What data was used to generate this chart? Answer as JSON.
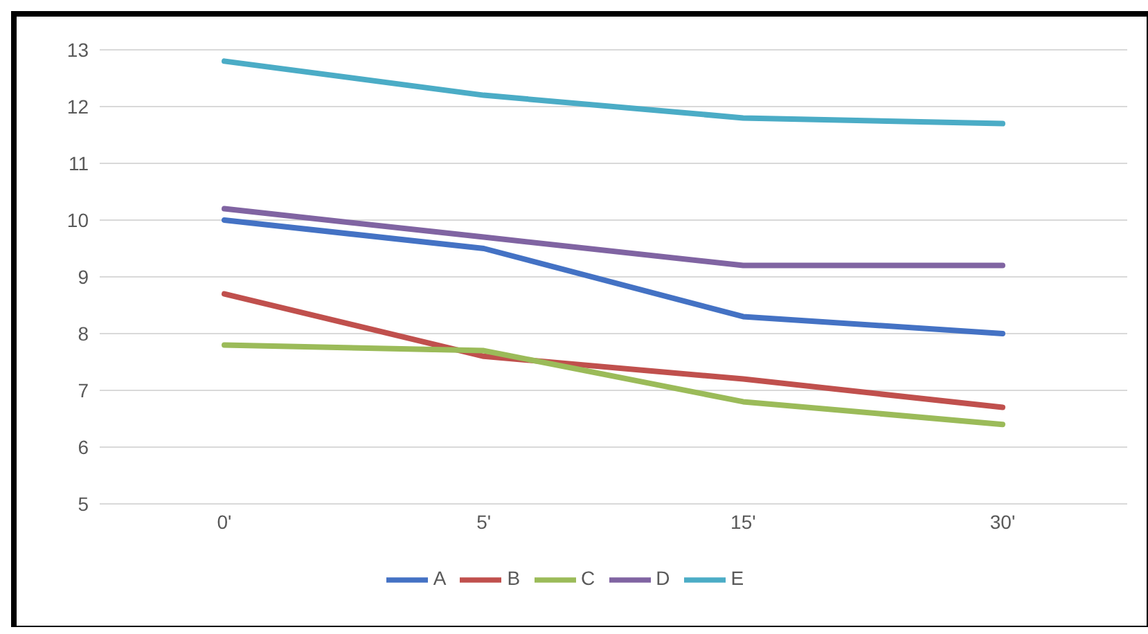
{
  "chart_data": {
    "type": "line",
    "categories": [
      "0'",
      "5'",
      "15'",
      "30'"
    ],
    "series": [
      {
        "name": "A",
        "color": "#4472c4",
        "values": [
          10.0,
          9.5,
          8.3,
          8.0
        ]
      },
      {
        "name": "B",
        "color": "#c0504d",
        "values": [
          8.7,
          7.6,
          7.2,
          6.7
        ]
      },
      {
        "name": "C",
        "color": "#9bbb59",
        "values": [
          7.8,
          7.7,
          6.8,
          6.4
        ]
      },
      {
        "name": "D",
        "color": "#8064a2",
        "values": [
          10.2,
          9.7,
          9.2,
          9.2
        ]
      },
      {
        "name": "E",
        "color": "#4bacc6",
        "values": [
          12.8,
          12.2,
          11.8,
          11.7
        ]
      }
    ],
    "ylim": [
      5,
      13
    ],
    "yticks": [
      5,
      6,
      7,
      8,
      9,
      10,
      11,
      12,
      13
    ],
    "grid": "y",
    "legend": "bottom",
    "marker": "none",
    "line_style": "solid"
  }
}
